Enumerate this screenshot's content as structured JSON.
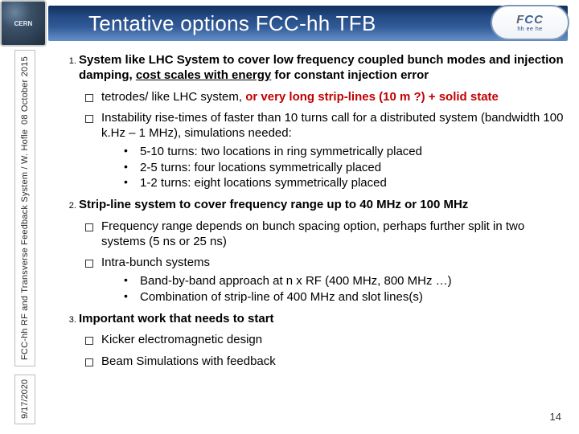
{
  "header": {
    "title": "Tentative options FCC-hh TFB",
    "cern_label": "CERN",
    "fcc_big": "FCC",
    "fcc_small": "hh ee he"
  },
  "sidebar": {
    "main": "FCC-hh RF and Transverse Feedback System  / W. Hofle",
    "date": "9/17/2020",
    "session_date": "08 October 2015"
  },
  "points": {
    "p1": {
      "lead_a": "System like LHC System to cover low frequency coupled bunch modes and injection damping, ",
      "lead_b": "cost scales with energy",
      "lead_c": " for constant injection error",
      "sq1_a": "tetrodes/ like LHC system, ",
      "sq1_b": "or very long strip-lines (10 m ?) + solid state",
      "sq2": "Instability rise-times of faster than 10 turns call for a distributed system (bandwidth 100 k.Hz – 1 MHz), simulations needed:",
      "d1": "5-10 turns: two locations in ring symmetrically placed",
      "d2": "2-5 turns: four locations symmetrically placed",
      "d3": "1-2 turns: eight locations symmetrically placed"
    },
    "p2": {
      "lead": "Strip-line system to cover frequency range up to 40 MHz or 100 MHz",
      "sq1": "Frequency range depends on bunch spacing option, perhaps further split in two systems (5 ns or 25 ns)",
      "sq2": "Intra-bunch systems",
      "d1": "Band-by-band approach at n x RF (400 MHz, 800 MHz …)",
      "d2": "Combination of strip-line of 400 MHz and slot lines(s)"
    },
    "p3": {
      "lead": "Important work that needs to start",
      "sq1": "Kicker electromagnetic design",
      "sq2": "Beam Simulations with feedback"
    }
  },
  "page_number": "14"
}
